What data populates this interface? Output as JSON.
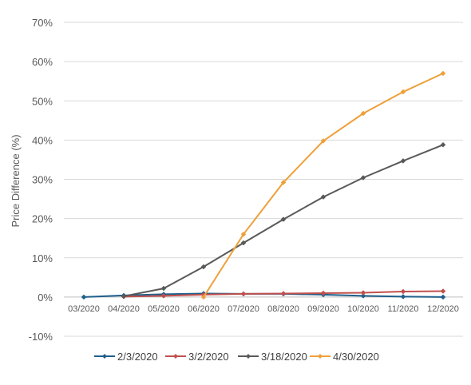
{
  "chart_data": {
    "type": "line",
    "title": "",
    "xlabel": "",
    "ylabel": "Price Difference (%)",
    "ylim": [
      -10,
      70
    ],
    "yticks": [
      "-10%",
      "0%",
      "10%",
      "20%",
      "30%",
      "40%",
      "50%",
      "60%",
      "70%"
    ],
    "ytick_values": [
      -10,
      0,
      10,
      20,
      30,
      40,
      50,
      60,
      70
    ],
    "categories": [
      "03/2020",
      "04/2020",
      "05/2020",
      "06/2020",
      "07/2020",
      "08/2020",
      "09/2020",
      "10/2020",
      "11/2020",
      "12/2020"
    ],
    "grid": true,
    "legend_position": "bottom",
    "series": [
      {
        "name": "2/3/2020",
        "color": "#1F5F8B",
        "marker": "diamond",
        "values": [
          0.0,
          0.4,
          0.7,
          0.9,
          0.8,
          0.8,
          0.6,
          0.3,
          0.1,
          0.0
        ]
      },
      {
        "name": "3/2/2020",
        "color": "#C0504D",
        "marker": "diamond",
        "values": [
          null,
          0.1,
          0.3,
          0.6,
          0.8,
          0.9,
          1.0,
          1.1,
          1.4,
          1.5
        ]
      },
      {
        "name": "3/18/2020",
        "color": "#595959",
        "marker": "diamond",
        "values": [
          null,
          0.2,
          2.2,
          7.7,
          13.8,
          19.8,
          25.5,
          30.4,
          34.7,
          38.8
        ]
      },
      {
        "name": "4/30/2020",
        "color": "#EEA03A",
        "marker": "diamond",
        "values": [
          null,
          null,
          null,
          0.0,
          16.0,
          29.2,
          39.8,
          46.8,
          52.3,
          57.0
        ]
      }
    ]
  }
}
